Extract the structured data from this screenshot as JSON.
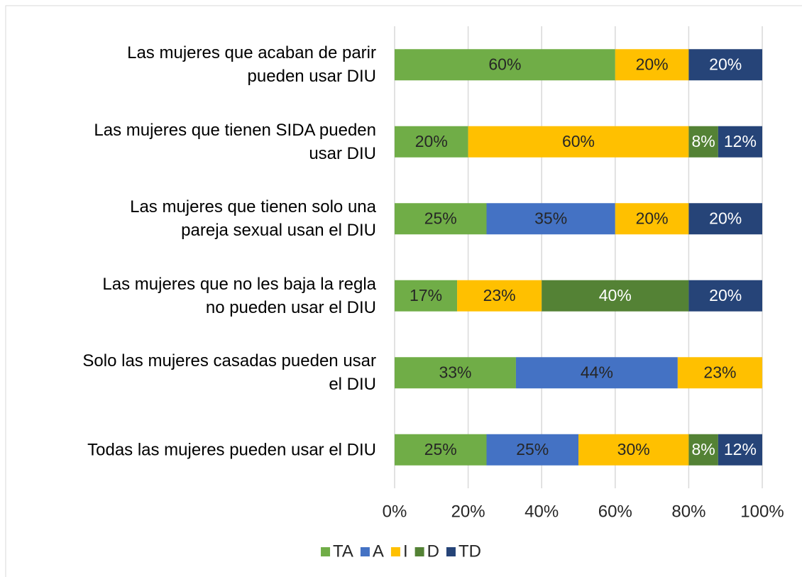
{
  "chart_data": {
    "type": "stacked_bar_horizontal",
    "categories": [
      "Las mujeres que acaban de parir\npueden usar DIU",
      "Las mujeres que tienen SIDA pueden\nusar DIU",
      "Las mujeres que tienen solo una\npareja sexual usan el DIU",
      "Las mujeres que no les baja la regla\nno pueden usar el DIU",
      "Solo las mujeres casadas pueden usar\nel DIU",
      "Todas las mujeres pueden usar el DIU"
    ],
    "series": [
      {
        "name": "TA",
        "color": "#70ad47",
        "label_color": "#262626",
        "values": [
          60,
          20,
          25,
          17,
          33,
          25
        ],
        "value_labels": [
          "60%",
          "20%",
          "25%",
          "17%",
          "33%",
          "25%"
        ]
      },
      {
        "name": "A",
        "color": "#4472c4",
        "label_color": "#262626",
        "values": [
          0,
          0,
          35,
          0,
          44,
          25
        ],
        "value_labels": [
          null,
          null,
          "35%",
          null,
          "44%",
          "25%"
        ]
      },
      {
        "name": "I",
        "color": "#ffc000",
        "label_color": "#262626",
        "values": [
          20,
          60,
          20,
          23,
          23,
          30
        ],
        "value_labels": [
          "20%",
          "60%",
          "20%",
          "23%",
          "23%",
          "30%"
        ]
      },
      {
        "name": "D",
        "color": "#548235",
        "label_color": "#ffffff",
        "values": [
          0,
          8,
          0,
          40,
          0,
          8
        ],
        "value_labels": [
          null,
          "8%",
          null,
          "40%",
          null,
          "8%"
        ]
      },
      {
        "name": "TD",
        "color": "#264478",
        "label_color": "#ffffff",
        "values": [
          20,
          12,
          20,
          20,
          0,
          12
        ],
        "value_labels": [
          "20%",
          "12%",
          "20%",
          "20%",
          null,
          "12%"
        ]
      }
    ],
    "xlim": [
      0,
      100
    ],
    "xticks": [
      {
        "value": 0,
        "label": "0%"
      },
      {
        "value": 20,
        "label": "20%"
      },
      {
        "value": 40,
        "label": "40%"
      },
      {
        "value": 60,
        "label": "60%"
      },
      {
        "value": 80,
        "label": "80%"
      },
      {
        "value": 100,
        "label": "100%"
      }
    ],
    "grid": true,
    "legend": "bottom"
  }
}
